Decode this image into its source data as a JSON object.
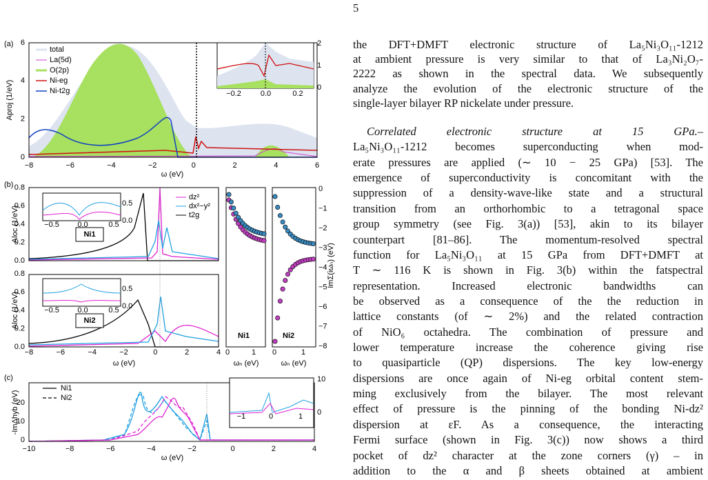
{
  "page_number": "5",
  "figure": {
    "panel_a": {
      "label": "(a)",
      "ylabel": "Aproj (1/eV)",
      "xlabel": "ω (eV)",
      "xticks": [
        "−8",
        "−6",
        "−4",
        "−2",
        "0",
        "2",
        "4",
        "6"
      ],
      "yticks": [
        "0",
        "2",
        "4",
        "6"
      ],
      "legend": [
        "total",
        "La(5d)",
        "O(2p)",
        "Ni-eg",
        "Ni-t2g"
      ],
      "inset": {
        "xticks": [
          "−0.2",
          "0.0",
          "0.2"
        ],
        "yticks": [
          "0",
          "1",
          "2"
        ]
      }
    },
    "panel_b": {
      "label": "(b)",
      "ylabel": "Aloc (1/eV)",
      "xlabel": "ω (eV)",
      "xticks": [
        "−8",
        "−6",
        "−4",
        "−2",
        "0",
        "2",
        "4"
      ],
      "yticks": [
        "0.0",
        "0.2",
        "0.4",
        "0.6",
        "0.8"
      ],
      "legend": [
        "dz²",
        "dx²−y²",
        "t2g"
      ],
      "tags": [
        "Ni1",
        "Ni2"
      ],
      "inset": {
        "xticks": [
          "−0.5",
          "0.0",
          "0.5"
        ],
        "yticks": [
          "0.0",
          "0.5"
        ]
      },
      "sigma": {
        "ylabel": "ImΣ(iωₙ) (eV)",
        "yticks": [
          "0",
          "−1",
          "−2",
          "−3",
          "−4",
          "−5",
          "−6",
          "−7",
          "−8"
        ],
        "tags": [
          "Ni1",
          "Ni2"
        ],
        "xticks": [
          "0",
          "1"
        ],
        "xlabel": "ωₙ (eV)"
      }
    },
    "panel_c": {
      "label": "(c)",
      "ylabel": "-ImΔhyb (eV)",
      "xlabel": "ω (eV)",
      "xticks": [
        "−10",
        "−8",
        "−6",
        "−4",
        "−2",
        "0",
        "2",
        "4"
      ],
      "yticks": [
        "0",
        "10",
        "20"
      ],
      "legend": [
        "Ni1",
        "Ni2"
      ],
      "inset": {
        "xticks": [
          "−1",
          "0",
          "1"
        ],
        "yticks": [
          "0",
          "10"
        ]
      }
    }
  },
  "text": {
    "paragraph_1": {
      "lines": [
        "the DFT+DMFT electronic structure of La₅Ni₃O₁₁-1212",
        "at ambient pressure is very similar to that of La₃Ni₂O₇-",
        "2222 as shown in the spectral data. We subsequently",
        "analyze the evolution of the electronic structure of the",
        "single-layer bilayer RP nickelate under pressure."
      ]
    },
    "paragraph_2": {
      "heading": "Correlated electronic structure at 15 GPa.–",
      "lines": [
        "La₅Ni₃O₁₁-1212 becomes superconducting when mod-",
        "erate pressures are applied (∼ 10 − 25 GPa) [53]. The",
        "emergence of superconductivity is concomitant with the",
        "suppression of a density-wave-like state and a structural",
        "transition from an orthorhombic to a tetragonal space",
        "group symmetry (see Fig. 3(a)) [53], akin to its bilayer",
        "counterpart [81–86]. The momentum-resolved spectral",
        "function for La₅Ni₃O₁₁ at 15 GPa from DFT+DMFT at",
        "T ∼ 116 K is shown in Fig. 3(b) within the fatspectral",
        "representation. Increased electronic bandwidths can",
        "be observed as a consequence of the the reduction in",
        "lattice constants (of ∼ 2%) and the related contraction",
        "of NiO₆ octahedra. The combination of pressure and",
        "lower temperature increase the coherence giving rise",
        "to quasiparticle (QP) dispersions. The key low-energy",
        "dispersions are once again of Ni-eg orbital content stem-",
        "ming exclusively from the bilayer. The most relevant",
        "effect of pressure is the pinning of the bonding Ni-dz²",
        "dispersion at εF. As a consequence, the interacting",
        "Fermi surface (shown in Fig. 3(c)) now shows a third",
        "pocket of dz² character at the zone corners (γ) – in",
        "addition to the α and β sheets obtained at ambient"
      ]
    }
  }
}
